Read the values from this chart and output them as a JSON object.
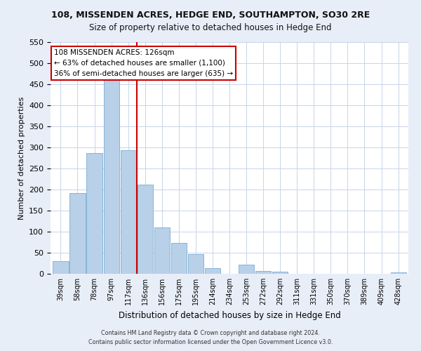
{
  "title": "108, MISSENDEN ACRES, HEDGE END, SOUTHAMPTON, SO30 2RE",
  "subtitle": "Size of property relative to detached houses in Hedge End",
  "xlabel": "Distribution of detached houses by size in Hedge End",
  "ylabel": "Number of detached properties",
  "bar_labels": [
    "39sqm",
    "58sqm",
    "78sqm",
    "97sqm",
    "117sqm",
    "136sqm",
    "156sqm",
    "175sqm",
    "195sqm",
    "214sqm",
    "234sqm",
    "253sqm",
    "272sqm",
    "292sqm",
    "311sqm",
    "331sqm",
    "350sqm",
    "370sqm",
    "389sqm",
    "409sqm",
    "428sqm"
  ],
  "bar_values": [
    30,
    192,
    287,
    460,
    293,
    212,
    110,
    73,
    46,
    13,
    0,
    22,
    7,
    5,
    0,
    0,
    0,
    0,
    0,
    0,
    4
  ],
  "bar_color": "#b8d0e8",
  "bar_edge_color": "#7aadd4",
  "vline_x": 4.5,
  "vline_color": "#cc0000",
  "ylim": [
    0,
    550
  ],
  "yticks": [
    0,
    50,
    100,
    150,
    200,
    250,
    300,
    350,
    400,
    450,
    500,
    550
  ],
  "annotation_title": "108 MISSENDEN ACRES: 126sqm",
  "annotation_line1": "← 63% of detached houses are smaller (1,100)",
  "annotation_line2": "36% of semi-detached houses are larger (635) →",
  "footnote1": "Contains HM Land Registry data © Crown copyright and database right 2024.",
  "footnote2": "Contains public sector information licensed under the Open Government Licence v3.0.",
  "background_color": "#e8eef8",
  "plot_bg_color": "#ffffff",
  "grid_color": "#c8d4e8"
}
